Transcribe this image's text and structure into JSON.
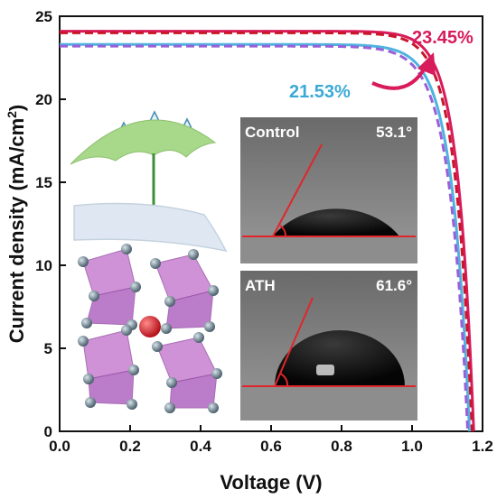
{
  "chart_data": {
    "type": "line",
    "xlabel": "Voltage (V)",
    "ylabel": "Current density (mA/cm²)",
    "ylabel_main": "Current density (mA/cm",
    "ylabel_sup": "2",
    "ylabel_close": ")",
    "xlim": [
      0.0,
      1.2
    ],
    "ylim": [
      0,
      25
    ],
    "xticks": [
      "0.0",
      "0.2",
      "0.4",
      "0.6",
      "0.8",
      "1.0",
      "1.2"
    ],
    "yticks": [
      "0",
      "5",
      "10",
      "15",
      "20",
      "25"
    ],
    "grid": false,
    "series": [
      {
        "jsc": 24.1,
        "voc": 1.175,
        "knee": 0.045,
        "color": "#d81b5a",
        "dash": false
      },
      {
        "jsc": 24.0,
        "voc": 1.17,
        "knee": 0.047,
        "color": "#c8162a",
        "dash": true
      },
      {
        "jsc": 23.3,
        "voc": 1.163,
        "knee": 0.05,
        "color": "#4fb3e0",
        "dash": false
      },
      {
        "jsc": 23.2,
        "voc": 1.158,
        "knee": 0.052,
        "color": "#9b5fd8",
        "dash": true
      }
    ],
    "annotations": [
      {
        "text": "23.45%",
        "color": "#d81b5a"
      },
      {
        "text": "21.53%",
        "color": "#3aa9d6"
      }
    ]
  },
  "insets": {
    "control": {
      "label": "Control",
      "angle": "53.1°"
    },
    "ath": {
      "label": "ATH",
      "angle": "61.6°"
    }
  },
  "colors": {
    "umbrella": "#a8d88a",
    "crystal": "#c77fd0",
    "node": "#6f8796",
    "cation": "#e0262b",
    "arrow": "#d81b5a"
  }
}
